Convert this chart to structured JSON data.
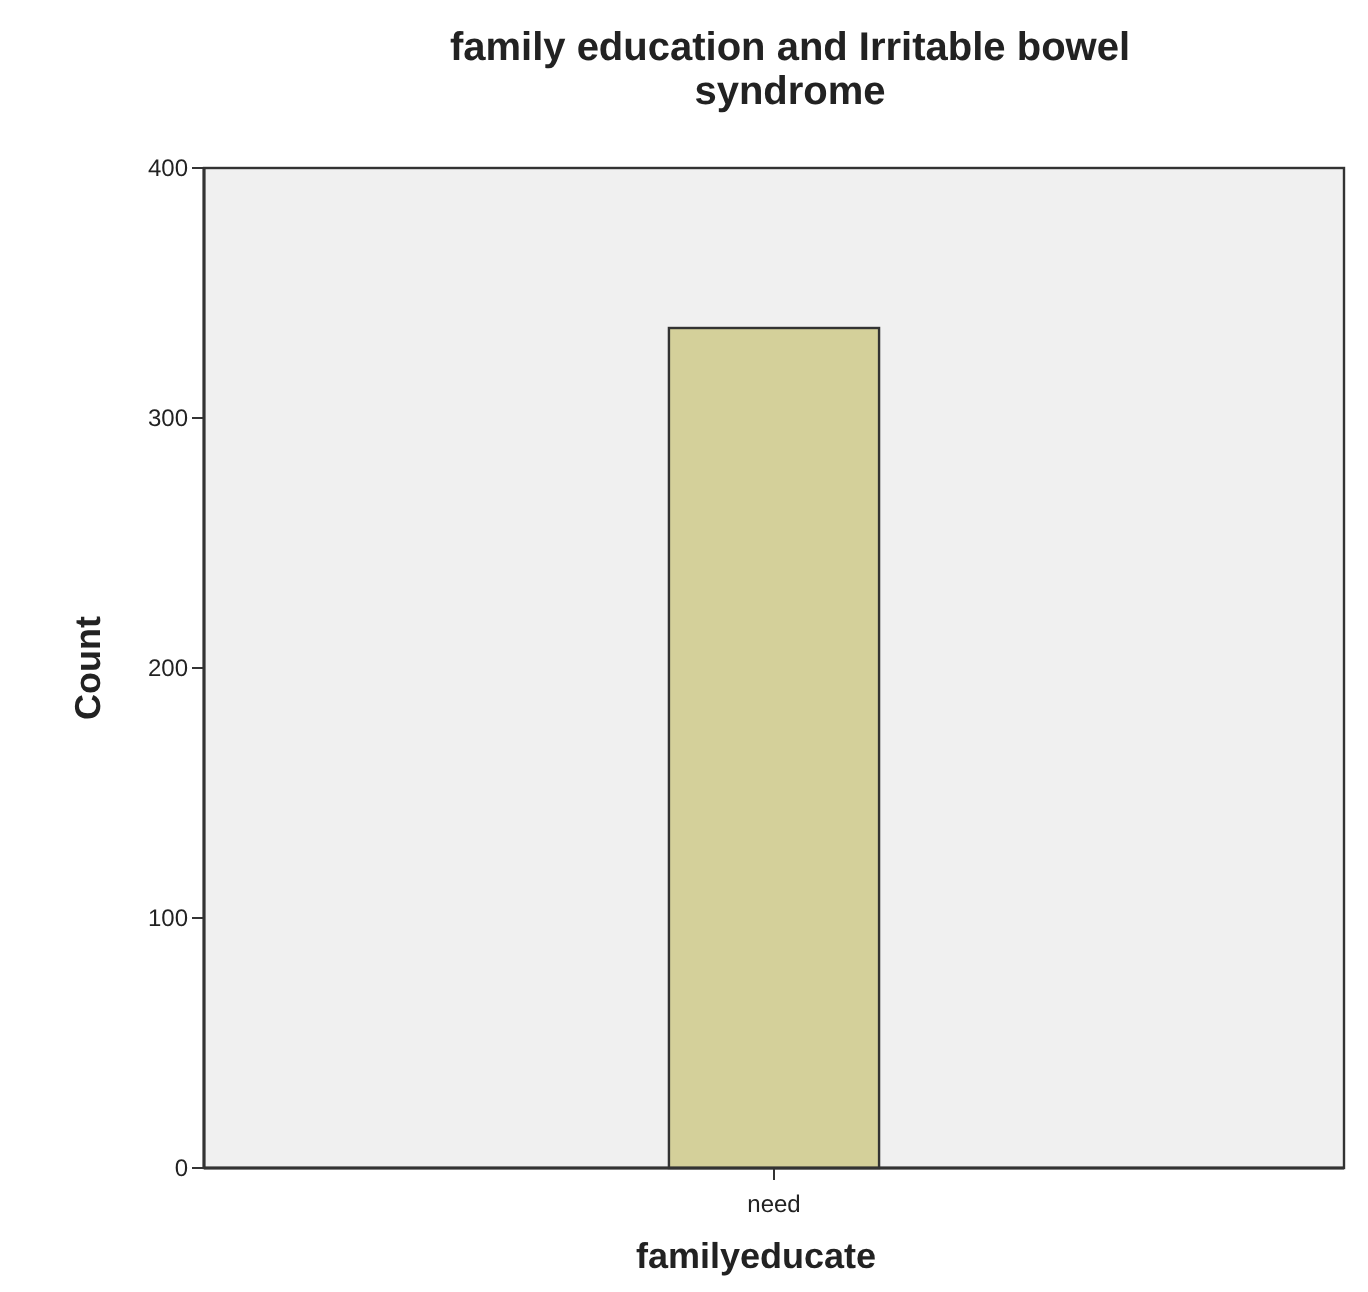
{
  "chart_data": {
    "type": "bar",
    "title": "family education and Irritable bowel syndrome",
    "xlabel": "familyeducate",
    "ylabel": "Count",
    "categories": [
      "need"
    ],
    "values": [
      336
    ],
    "color": "#d4d09a",
    "ylim": [
      0,
      400
    ],
    "yticks": [
      0,
      100,
      200,
      300,
      400
    ],
    "grid": false
  }
}
